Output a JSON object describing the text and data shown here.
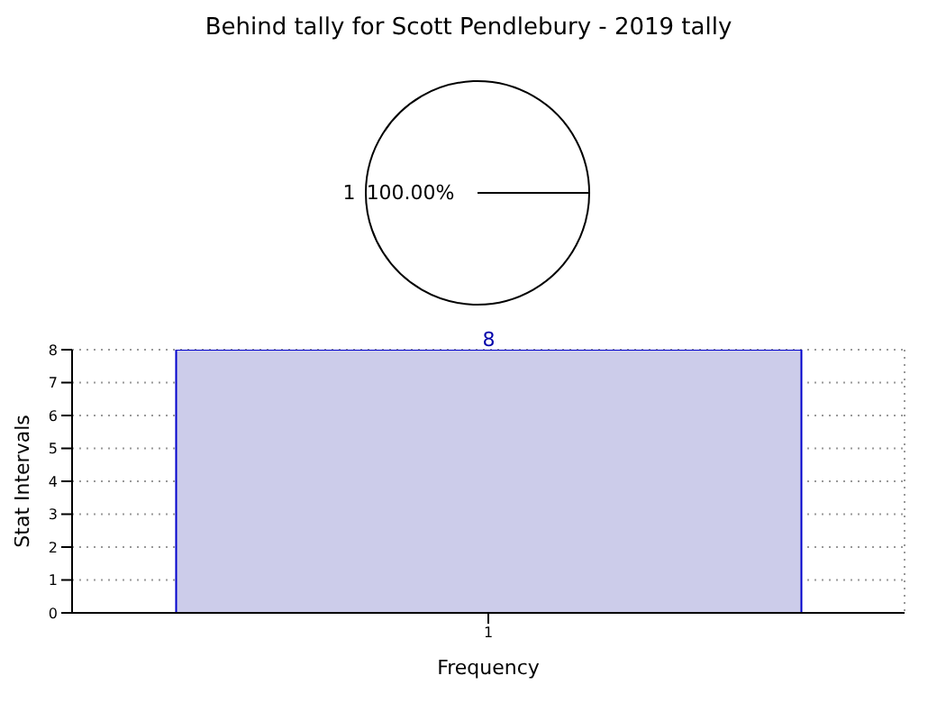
{
  "chart_data": [
    {
      "type": "pie",
      "title": "Behind tally for Scott Pendlebury - 2019 tally",
      "categories": [
        "1"
      ],
      "values": [
        100
      ],
      "colors": [
        "#ffffff"
      ],
      "value_labels": [
        "100.00%"
      ]
    },
    {
      "type": "bar",
      "categories": [
        "1"
      ],
      "values": [
        8
      ],
      "color": "#ccccea",
      "xlabel": "Frequency",
      "ylabel": "Stat Intervals",
      "ylim": [
        0,
        8
      ],
      "yticks": [
        0,
        1,
        2,
        3,
        4,
        5,
        6,
        7,
        8
      ],
      "grid": true,
      "data_labels": true
    }
  ]
}
